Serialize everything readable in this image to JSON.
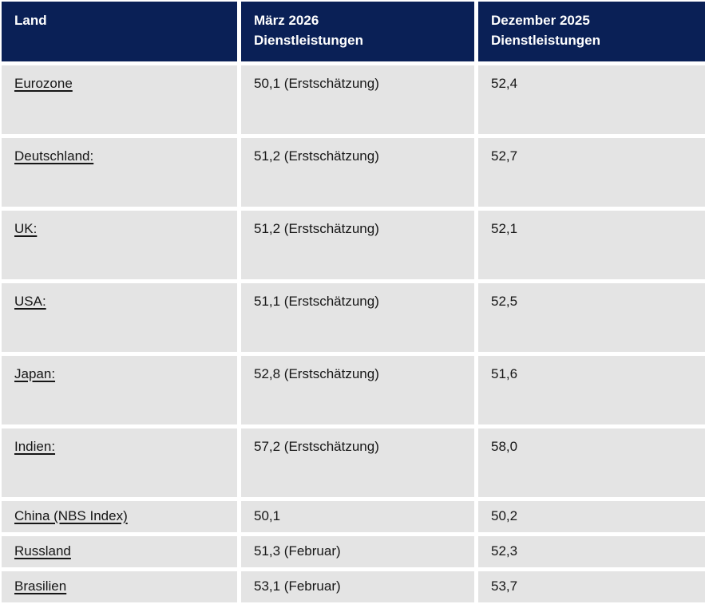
{
  "colors": {
    "header_bg": "#0A2056",
    "header_text": "#FFFFFF",
    "row_bg": "#E4E4E4",
    "body_text": "#161616",
    "page_bg": "#FFFFFF"
  },
  "table": {
    "columns": [
      {
        "label_line1": "Land",
        "label_line2": ""
      },
      {
        "label_line1": "März 2026",
        "label_line2": "Dienstleistungen"
      },
      {
        "label_line1": "Dezember 2025",
        "label_line2": "Dienstleistungen"
      }
    ],
    "rows": [
      {
        "country": "Eurozone",
        "mar_2026": "50,1 (Erstschätzung)",
        "dec_2025": "52,4"
      },
      {
        "country": "Deutschland:",
        "mar_2026": "51,2 (Erstschätzung)",
        "dec_2025": "52,7"
      },
      {
        "country": "UK:",
        "mar_2026": "51,2 (Erstschätzung)",
        "dec_2025": "52,1"
      },
      {
        "country": "USA:",
        "mar_2026": "51,1 (Erstschätzung)",
        "dec_2025": "52,5"
      },
      {
        "country": "Japan:",
        "mar_2026": "52,8 (Erstschätzung)",
        "dec_2025": "51,6"
      },
      {
        "country": "Indien:",
        "mar_2026": "57,2 (Erstschätzung)",
        "dec_2025": "58,0"
      },
      {
        "country": "China (NBS Index)",
        "mar_2026": "50,1",
        "dec_2025": "50,2"
      },
      {
        "country": "Russland",
        "mar_2026": "51,3 (Februar)",
        "dec_2025": "52,3"
      },
      {
        "country": "Brasilien",
        "mar_2026": "53,1 (Februar)",
        "dec_2025": "53,7"
      }
    ]
  }
}
